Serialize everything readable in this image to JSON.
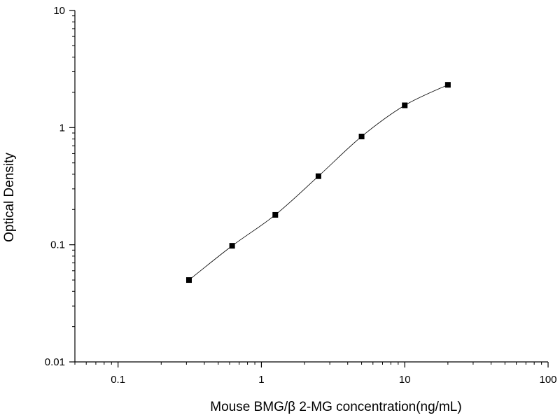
{
  "chart_data": {
    "type": "scatter",
    "title": "",
    "xlabel": "Mouse BMG/β 2-MG concentration(ng/mL)",
    "ylabel": "Optical Density",
    "x_scale": "log",
    "y_scale": "log",
    "xlim": [
      0.05,
      100
    ],
    "ylim": [
      0.01,
      10
    ],
    "grid": false,
    "x_ticks": [
      {
        "value": 0.1,
        "label": "0.1"
      },
      {
        "value": 1,
        "label": "1"
      },
      {
        "value": 10,
        "label": "10"
      },
      {
        "value": 100,
        "label": "100"
      }
    ],
    "y_ticks": [
      {
        "value": 0.01,
        "label": "0.01"
      },
      {
        "value": 0.1,
        "label": "0.1"
      },
      {
        "value": 1,
        "label": "1"
      },
      {
        "value": 10,
        "label": "10"
      }
    ],
    "series": [
      {
        "marker": "square",
        "fit_line": true,
        "color": "#000000",
        "x": [
          0.3125,
          0.625,
          1.25,
          2.5,
          5,
          10,
          20
        ],
        "y": [
          0.05,
          0.098,
          0.18,
          0.385,
          0.84,
          1.55,
          2.32
        ]
      }
    ]
  }
}
